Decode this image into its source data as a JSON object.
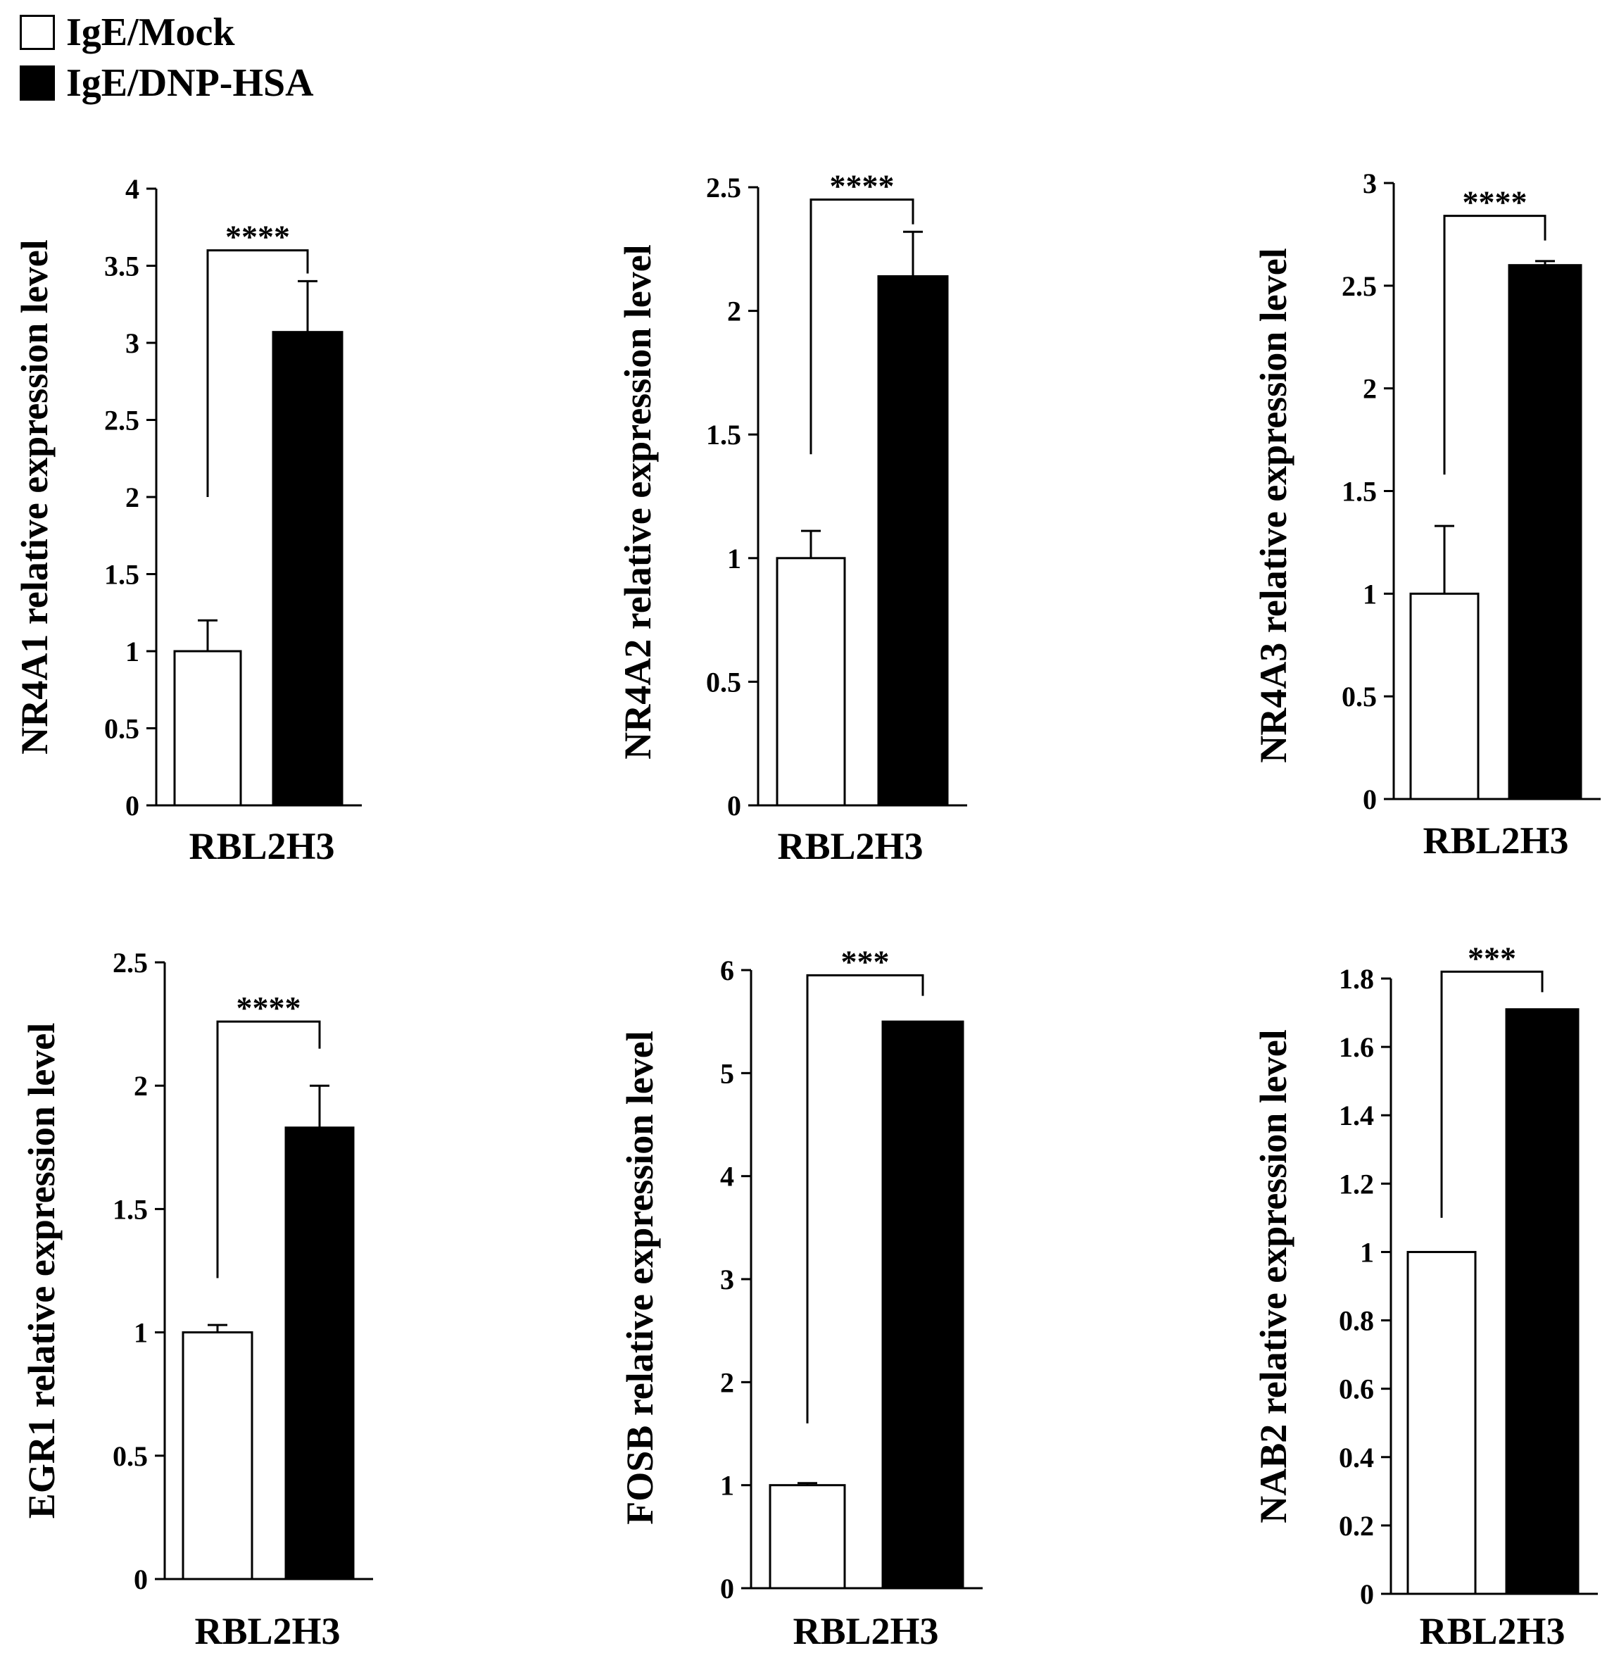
{
  "legend": {
    "mock_label": "IgE/Mock",
    "dnp_label": "IgE/DNP-HSA",
    "mock_color": "#ffffff",
    "dnp_color": "#000000"
  },
  "chart_data": [
    {
      "type": "bar",
      "category": "RBL2H3",
      "ylabel": "NR4A1 relative expression level",
      "ylim": [
        0,
        4
      ],
      "ticks": [
        "0",
        "0.5",
        "1",
        "1.5",
        "2",
        "2.5",
        "3",
        "3.5",
        "4"
      ],
      "tick_step": 0.5,
      "series": [
        {
          "name": "IgE/Mock",
          "value": 1.0,
          "error": 0.2
        },
        {
          "name": "IgE/DNP-HSA",
          "value": 3.07,
          "error": 0.33
        }
      ],
      "significance": "****",
      "bracket_left": 2.0,
      "bracket_right": 3.45,
      "bracket_top": 3.6
    },
    {
      "type": "bar",
      "category": "RBL2H3",
      "ylabel": "NR4A2 relative expression level",
      "ylim": [
        0,
        2.5
      ],
      "ticks": [
        "0",
        "0.5",
        "1",
        "1.5",
        "2",
        "2.5"
      ],
      "tick_step": 0.5,
      "series": [
        {
          "name": "IgE/Mock",
          "value": 1.0,
          "error": 0.11
        },
        {
          "name": "IgE/DNP-HSA",
          "value": 2.14,
          "error": 0.18
        }
      ],
      "significance": "****",
      "bracket_left": 1.42,
      "bracket_right": 2.35,
      "bracket_top": 2.45
    },
    {
      "type": "bar",
      "category": "RBL2H3",
      "ylabel": "NR4A3 relative expression level",
      "ylim": [
        0,
        3
      ],
      "ticks": [
        "0",
        "0.5",
        "1",
        "1.5",
        "2",
        "2.5",
        "3"
      ],
      "tick_step": 0.5,
      "series": [
        {
          "name": "IgE/Mock",
          "value": 1.0,
          "error": 0.33
        },
        {
          "name": "IgE/DNP-HSA",
          "value": 2.6,
          "error": 0.02
        }
      ],
      "significance": "****",
      "bracket_left": 1.58,
      "bracket_right": 2.72,
      "bracket_top": 2.84
    },
    {
      "type": "bar",
      "category": "RBL2H3",
      "ylabel": "EGR1 relative expression level",
      "ylim": [
        0,
        2.5
      ],
      "ticks": [
        "0",
        "0.5",
        "1",
        "1.5",
        "2",
        "2.5"
      ],
      "tick_step": 0.5,
      "series": [
        {
          "name": "IgE/Mock",
          "value": 1.0,
          "error": 0.03
        },
        {
          "name": "IgE/DNP-HSA",
          "value": 1.83,
          "error": 0.17
        }
      ],
      "significance": "****",
      "bracket_left": 1.22,
      "bracket_right": 2.15,
      "bracket_top": 2.26
    },
    {
      "type": "bar",
      "category": "RBL2H3",
      "ylabel": "FOSB relative expression level",
      "ylim": [
        0,
        6
      ],
      "ticks": [
        "0",
        "1",
        "2",
        "3",
        "4",
        "5",
        "6"
      ],
      "tick_step": 1,
      "series": [
        {
          "name": "IgE/Mock",
          "value": 1.0,
          "error": 0.02
        },
        {
          "name": "IgE/DNP-HSA",
          "value": 5.5,
          "error": 0.0
        }
      ],
      "significance": "***",
      "bracket_left": 1.6,
      "bracket_right": 5.75,
      "bracket_top": 5.95
    },
    {
      "type": "bar",
      "category": "RBL2H3",
      "ylabel": "NAB2 relative expression level",
      "ylim": [
        0,
        1.8
      ],
      "ticks": [
        "0",
        "0.2",
        "0.4",
        "0.6",
        "0.8",
        "1",
        "1.2",
        "1.4",
        "1.6",
        "1.8"
      ],
      "tick_step": 0.2,
      "series": [
        {
          "name": "IgE/Mock",
          "value": 1.0,
          "error": 0.0
        },
        {
          "name": "IgE/DNP-HSA",
          "value": 1.71,
          "error": 0.0
        }
      ],
      "significance": "***",
      "bracket_left": 1.1,
      "bracket_right": 1.76,
      "bracket_top": 1.82
    }
  ]
}
